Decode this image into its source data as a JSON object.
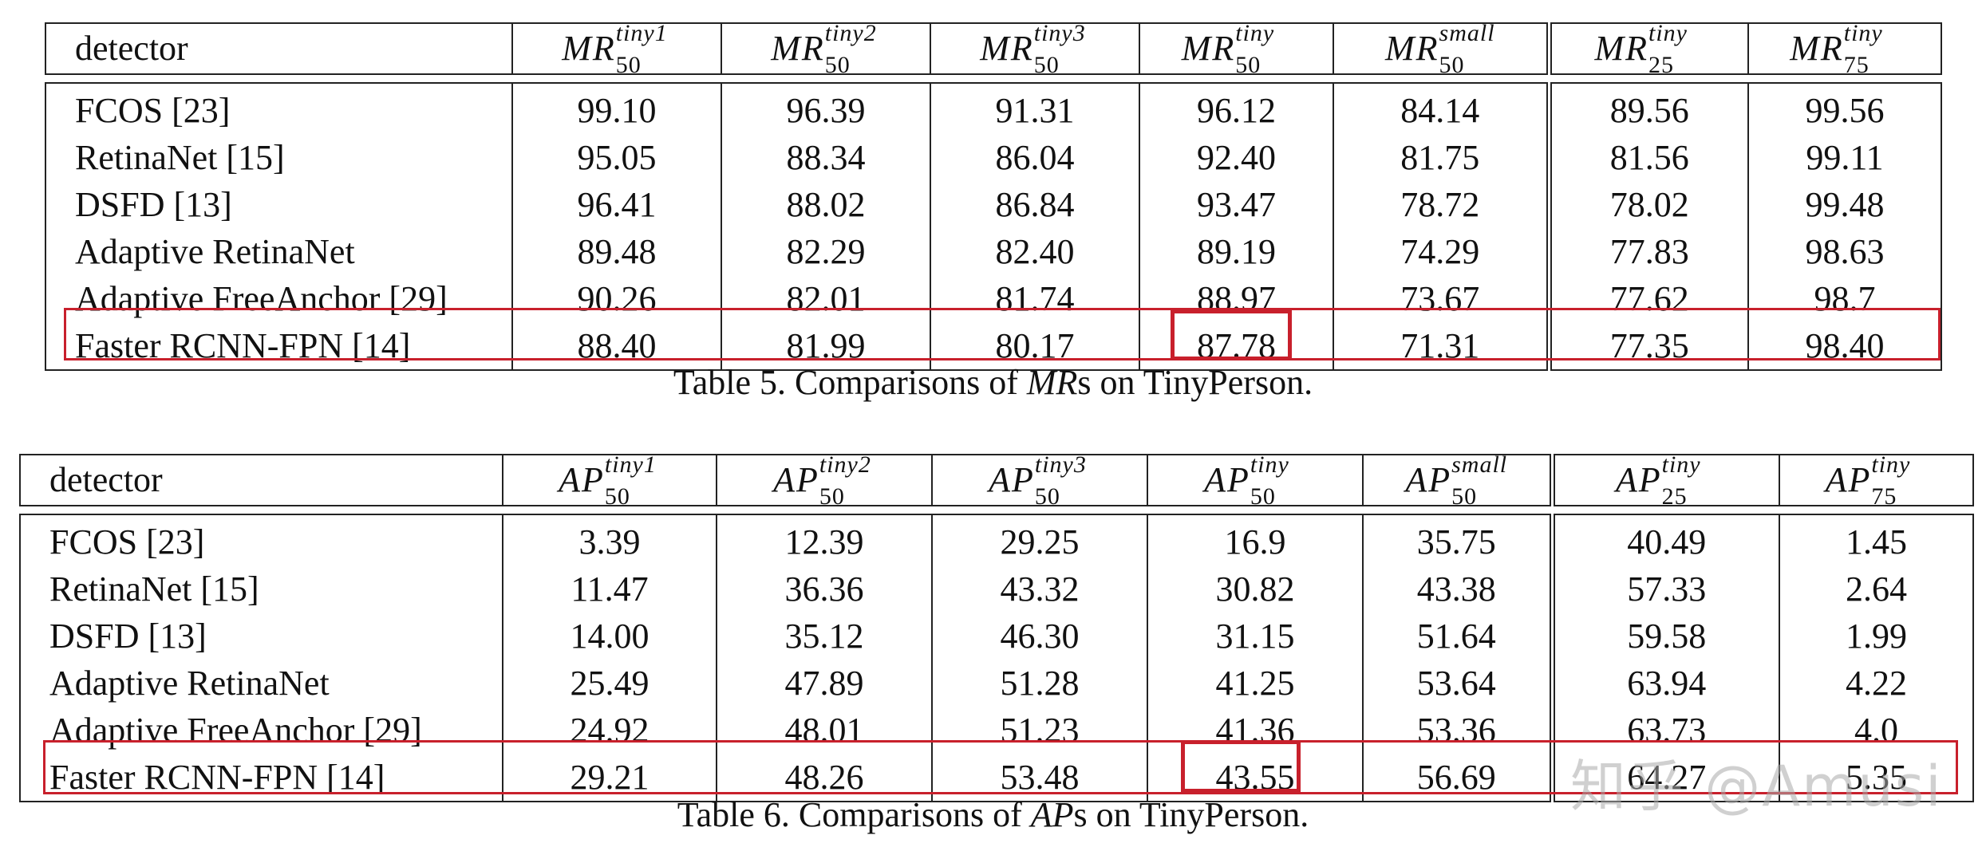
{
  "table5": {
    "caption_prefix": "Table 5. Comparisons of ",
    "caption_math": "MR",
    "caption_suffix": "s on TinyPerson.",
    "header": [
      {
        "base": "detector"
      },
      {
        "base": "MR",
        "sup": "tiny1",
        "sub": "50"
      },
      {
        "base": "MR",
        "sup": "tiny2",
        "sub": "50"
      },
      {
        "base": "MR",
        "sup": "tiny3",
        "sub": "50"
      },
      {
        "base": "MR",
        "sup": "tiny",
        "sub": "50"
      },
      {
        "base": "MR",
        "sup": "small",
        "sub": "50"
      },
      {
        "base": "MR",
        "sup": "tiny",
        "sub": "25"
      },
      {
        "base": "MR",
        "sup": "tiny",
        "sub": "75"
      }
    ],
    "rows": [
      [
        "FCOS [23]",
        "99.10",
        "96.39",
        "91.31",
        "96.12",
        "84.14",
        "89.56",
        "99.56"
      ],
      [
        "RetinaNet [15]",
        "95.05",
        "88.34",
        "86.04",
        "92.40",
        "81.75",
        "81.56",
        "99.11"
      ],
      [
        "DSFD [13]",
        "96.41",
        "88.02",
        "86.84",
        "93.47",
        "78.72",
        "78.02",
        "99.48"
      ],
      [
        "Adaptive RetinaNet",
        "89.48",
        "82.29",
        "82.40",
        "89.19",
        "74.29",
        "77.83",
        "98.63"
      ],
      [
        "Adaptive FreeAnchor [29]",
        "90.26",
        "82.01",
        "81.74",
        "88.97",
        "73.67",
        "77.62",
        "98.7"
      ],
      [
        "Faster RCNN-FPN [14]",
        "88.40",
        "81.99",
        "80.17",
        "87.78",
        "71.31",
        "77.35",
        "98.40"
      ]
    ],
    "highlight_color": "#c8202c"
  },
  "table6": {
    "caption_prefix": "Table 6. Comparisons of ",
    "caption_math": "AP",
    "caption_suffix": "s on TinyPerson.",
    "header": [
      {
        "base": "detector"
      },
      {
        "base": "AP",
        "sup": "tiny1",
        "sub": "50"
      },
      {
        "base": "AP",
        "sup": "tiny2",
        "sub": "50"
      },
      {
        "base": "AP",
        "sup": "tiny3",
        "sub": "50"
      },
      {
        "base": "AP",
        "sup": "tiny",
        "sub": "50"
      },
      {
        "base": "AP",
        "sup": "small",
        "sub": "50"
      },
      {
        "base": "AP",
        "sup": "tiny",
        "sub": "25"
      },
      {
        "base": "AP",
        "sup": "tiny",
        "sub": "75"
      }
    ],
    "rows": [
      [
        "FCOS [23]",
        "3.39",
        "12.39",
        "29.25",
        "16.9",
        "35.75",
        "40.49",
        "1.45"
      ],
      [
        "RetinaNet [15]",
        "11.47",
        "36.36",
        "43.32",
        "30.82",
        "43.38",
        "57.33",
        "2.64"
      ],
      [
        "DSFD [13]",
        "14.00",
        "35.12",
        "46.30",
        "31.15",
        "51.64",
        "59.58",
        "1.99"
      ],
      [
        "Adaptive RetinaNet",
        "25.49",
        "47.89",
        "51.28",
        "41.25",
        "53.64",
        "63.94",
        "4.22"
      ],
      [
        "Adaptive FreeAnchor [29]",
        "24.92",
        "48.01",
        "51.23",
        "41.36",
        "53.36",
        "63.73",
        "4.0"
      ],
      [
        "Faster RCNN-FPN [14]",
        "29.21",
        "48.26",
        "53.48",
        "43.55",
        "56.69",
        "64.27",
        "5.35"
      ]
    ],
    "highlight_color": "#c8202c"
  },
  "watermark": "知乎 @Amusi"
}
